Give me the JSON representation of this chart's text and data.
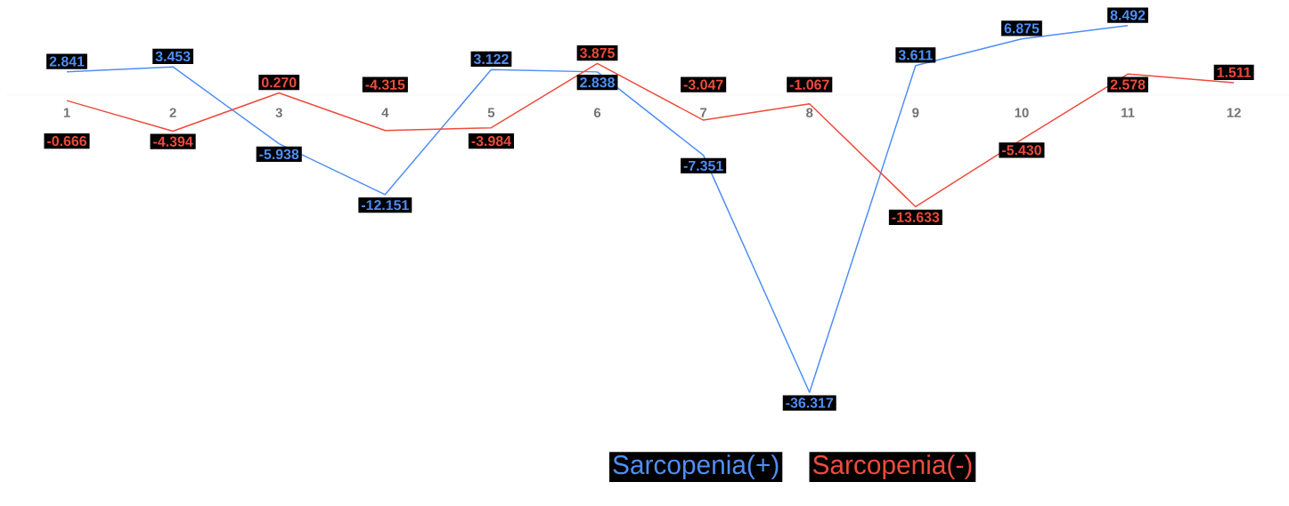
{
  "chart_data": {
    "type": "line",
    "categories": [
      "1",
      "2",
      "3",
      "4",
      "5",
      "6",
      "7",
      "8",
      "9",
      "10",
      "11",
      "12"
    ],
    "series": [
      {
        "name": "Sarcopenia(+)",
        "color": "#4f8ef5",
        "values": [
          2.841,
          3.453,
          -5.938,
          -12.151,
          3.122,
          2.838,
          -7.351,
          -36.317,
          3.611,
          6.875,
          8.492,
          null
        ],
        "value_labels": [
          "2.841",
          "3.453",
          "-5.938",
          "-12.151",
          "3.122",
          "2.838",
          "-7.351",
          "-36.317",
          "3.611",
          "6.875",
          "8.492",
          null
        ]
      },
      {
        "name": "Sarcopenia(-)",
        "color": "#ee4b3c",
        "values": [
          -0.666,
          -4.394,
          0.27,
          -4.315,
          -3.984,
          3.875,
          -3.047,
          -1.067,
          -13.633,
          -5.43,
          2.578,
          1.511
        ],
        "value_labels": [
          "-0.666",
          "-4.394",
          "0.270",
          "-4.315",
          "-3.984",
          "3.875",
          "-3.047",
          "-1.067",
          "-13.633",
          "-5.430",
          "2.578",
          "1.511"
        ]
      }
    ],
    "marker": "none",
    "line_style": "solid",
    "legend": "bottom"
  }
}
